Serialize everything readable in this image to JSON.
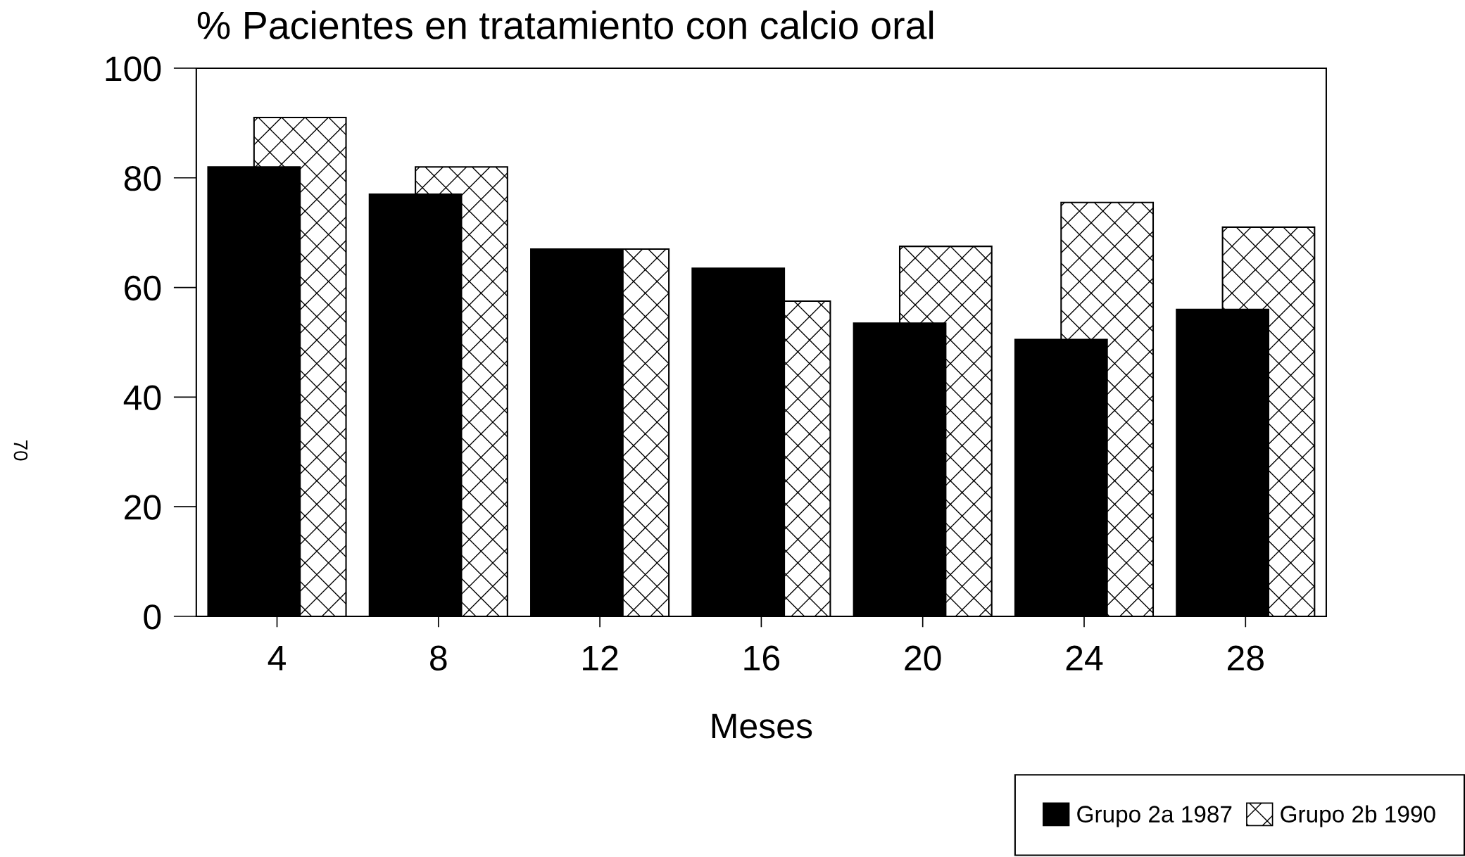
{
  "chart_data": {
    "type": "bar",
    "title": "% Pacientes en tratamiento con calcio oral",
    "xlabel": "Meses",
    "categories": [
      "4",
      "8",
      "12",
      "16",
      "20",
      "24",
      "28"
    ],
    "series": [
      {
        "name": "Grupo 2a 1987",
        "color": "#000000",
        "values": [
          82,
          77,
          67,
          63.5,
          53.5,
          50.5,
          56
        ]
      },
      {
        "name": "Grupo 2b 1990",
        "color": "#000000",
        "values": [
          91,
          82,
          67,
          57.5,
          67.5,
          75.5,
          71
        ]
      }
    ],
    "ylim": [
      0,
      100
    ],
    "yticks": [
      0,
      20,
      40,
      60,
      80,
      100
    ],
    "legend": "bottom right",
    "annotations": [
      "70"
    ]
  }
}
